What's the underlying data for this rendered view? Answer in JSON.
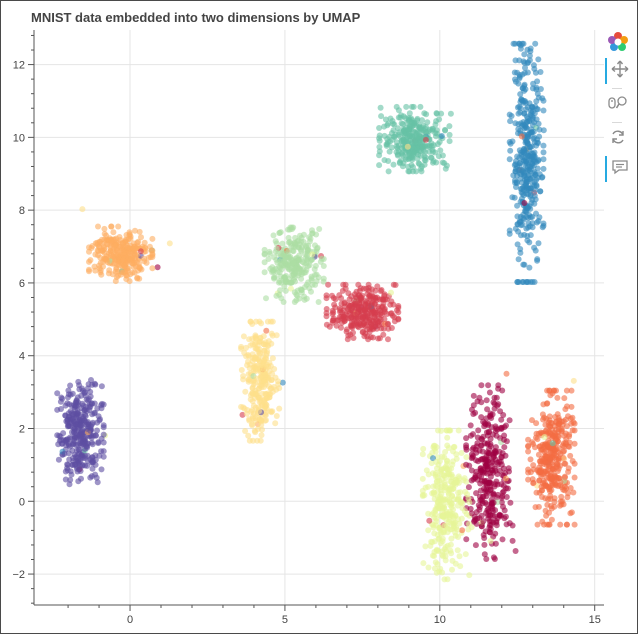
{
  "chart_data": {
    "type": "scatter",
    "title": "MNIST data embedded into two dimensions by UMAP",
    "xlabel": "",
    "ylabel": "",
    "xlim": [
      -3.1,
      15.3
    ],
    "ylim": [
      -2.85,
      12.95
    ],
    "x_ticks": [
      0,
      5,
      10,
      15
    ],
    "x_tick_labels": [
      "0",
      "5",
      "10",
      "15"
    ],
    "y_ticks": [
      -2,
      0,
      2,
      4,
      6,
      8,
      10,
      12
    ],
    "y_tick_labels": [
      "−2",
      "0",
      "2",
      "4",
      "6",
      "8",
      "10",
      "12"
    ],
    "grid": true,
    "legend": "none",
    "point_alpha": 0.6,
    "series": [
      {
        "color": "#5e4fa2",
        "center": [
          -1.6,
          1.9
        ],
        "spread": [
          0.55,
          1.05
        ],
        "count": 320
      },
      {
        "color": "#3288bd",
        "center": [
          12.8,
          9.3
        ],
        "spread": [
          0.4,
          2.4
        ],
        "count": 380
      },
      {
        "color": "#66c2a5",
        "center": [
          9.2,
          9.95
        ],
        "spread": [
          0.85,
          0.65
        ],
        "count": 300
      },
      {
        "color": "#abdda4",
        "center": [
          5.3,
          6.5
        ],
        "spread": [
          0.7,
          0.75
        ],
        "count": 260
      },
      {
        "color": "#e6f598",
        "center": [
          10.2,
          -0.1
        ],
        "spread": [
          0.55,
          1.5
        ],
        "count": 300
      },
      {
        "color": "#fee08b",
        "center": [
          4.2,
          3.3
        ],
        "spread": [
          0.45,
          1.2
        ],
        "count": 260
      },
      {
        "color": "#fdae61",
        "center": [
          -0.3,
          6.8
        ],
        "spread": [
          0.75,
          0.55
        ],
        "count": 280
      },
      {
        "color": "#f46d43",
        "center": [
          13.6,
          1.2
        ],
        "spread": [
          0.55,
          1.35
        ],
        "count": 340
      },
      {
        "color": "#d53e4f",
        "center": [
          7.5,
          5.2
        ],
        "spread": [
          0.85,
          0.55
        ],
        "count": 300
      },
      {
        "color": "#9e0142",
        "center": [
          11.6,
          0.8
        ],
        "spread": [
          0.55,
          1.75
        ],
        "count": 320
      }
    ]
  },
  "toolbar": {
    "tools": [
      {
        "name": "bokeh-logo-icon",
        "active": false
      },
      {
        "name": "pan-tool-icon",
        "active": true
      },
      {
        "name": "wheel-zoom-tool-icon",
        "active": false
      },
      {
        "name": "reset-tool-icon",
        "active": false
      },
      {
        "name": "hover-tool-icon",
        "active": true
      }
    ],
    "colors": {
      "accent": "#26aae1",
      "icon": "#8a8a8a"
    }
  }
}
